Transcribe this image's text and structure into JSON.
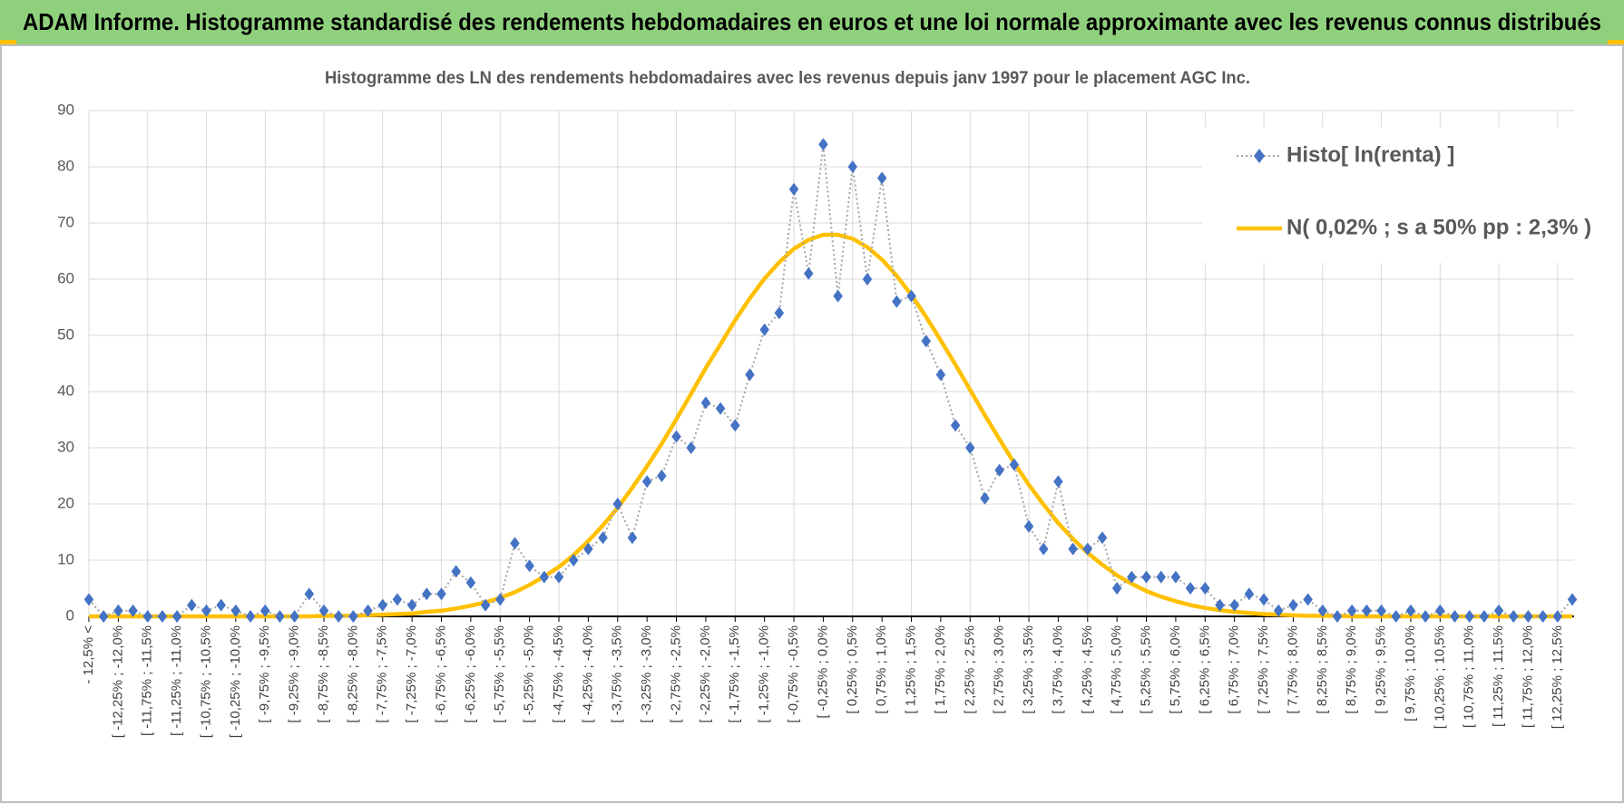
{
  "header": {
    "title": "ADAM Informe. Histogramme standardisé des rendements hebdomadaires en euros et une loi normale approximante avec les revenus connus distribués"
  },
  "chart_data": {
    "type": "line",
    "title": "Histogramme  des LN des rendements hebdomadaires avec les revenus depuis janv 1997 pour le placement AGC Inc.",
    "categories": [
      "- 12,5% <",
      null,
      "[ -12,25% ; -12,0%",
      null,
      "[ -11,75% ; -11,5%",
      null,
      "[ -11,25% ; -11,0%",
      null,
      "[ -10,75% ; -10,5%",
      null,
      "[ -10,25% ; -10,0%",
      null,
      "[ -9,75% ; -9,5%",
      null,
      "[ -9,25% ; -9,0%",
      null,
      "[ -8,75% ; -8,5%",
      null,
      "[ -8,25% ; -8,0%",
      null,
      "[ -7,75% ; -7,5%",
      null,
      "[ -7,25% ; -7,0%",
      null,
      "[ -6,75% ; -6,5%",
      null,
      "[ -6,25% ; -6,0%",
      null,
      "[ -5,75% ; -5,5%",
      null,
      "[ -5,25% ; -5,0%",
      null,
      "[ -4,75% ; -4,5%",
      null,
      "[ -4,25% ; -4,0%",
      null,
      "[ -3,75% ; -3,5%",
      null,
      "[ -3,25% ; -3,0%",
      null,
      "[ -2,75% ; -2,5%",
      null,
      "[ -2,25% ; -2,0%",
      null,
      "[ -1,75% ; -1,5%",
      null,
      "[ -1,25% ; -1,0%",
      null,
      "[ -0,75% ; -0,5%",
      null,
      "[ -0,25% ; 0,0%",
      null,
      "[ 0,25% ; 0,5%",
      null,
      "[ 0,75% ; 1,0%",
      null,
      "[ 1,25% ; 1,5%",
      null,
      "[ 1,75% ; 2,0%",
      null,
      "[ 2,25% ; 2,5%",
      null,
      "[ 2,75% ; 3,0%",
      null,
      "[ 3,25% ; 3,5%",
      null,
      "[ 3,75% ; 4,0%",
      null,
      "[ 4,25% ; 4,5%",
      null,
      "[ 4,75% ; 5,0%",
      null,
      "[ 5,25% ; 5,5%",
      null,
      "[ 5,75% ; 6,0%",
      null,
      "[ 6,25% ; 6,5%",
      null,
      "[ 6,75% ; 7,0%",
      null,
      "[ 7,25% ; 7,5%",
      null,
      "[ 7,75% ; 8,0%",
      null,
      "[ 8,25% ; 8,5%",
      null,
      "[ 8,75% ; 9,0%",
      null,
      "[ 9,25% ; 9,5%",
      null,
      "[ 9,75% ; 10,0%",
      null,
      "[ 10,25% ; 10,5%",
      null,
      "[ 10,75% ; 11,0%",
      null,
      "[ 11,25% ; 11,5%",
      null,
      "[ 11,75% ; 12,0%",
      null,
      "[ 12,25% ; 12,5%",
      null
    ],
    "series": [
      {
        "name": "Histo[ ln(renta) ]",
        "color": "#4472c4",
        "line_color": "#a5a5a5",
        "values": [
          3,
          0,
          1,
          1,
          0,
          0,
          0,
          2,
          1,
          2,
          1,
          0,
          1,
          0,
          0,
          4,
          1,
          0,
          0,
          1,
          2,
          3,
          2,
          4,
          4,
          8,
          6,
          2,
          3,
          13,
          9,
          7,
          7,
          10,
          12,
          14,
          20,
          14,
          24,
          25,
          32,
          30,
          38,
          37,
          34,
          43,
          51,
          54,
          76,
          61,
          84,
          57,
          80,
          60,
          78,
          56,
          57,
          49,
          43,
          34,
          30,
          21,
          26,
          27,
          16,
          12,
          24,
          12,
          12,
          14,
          5,
          7,
          7,
          7,
          7,
          5,
          5,
          2,
          2,
          4,
          3,
          1,
          2,
          3,
          1,
          0,
          1,
          1,
          1,
          0,
          1,
          0,
          1,
          0,
          0,
          0,
          1,
          0,
          0,
          0,
          0,
          3
        ]
      },
      {
        "name": "N( 0,02% ; s a 50% pp : 2,3% )",
        "color": "#ffc000",
        "values": [
          0,
          0,
          0,
          0,
          0,
          0,
          0,
          0,
          0,
          0,
          0,
          0,
          0,
          0,
          0,
          0,
          0.1,
          0.1,
          0.1,
          0.2,
          0.3,
          0.4,
          0.5,
          0.8,
          1.0,
          1.4,
          1.9,
          2.5,
          3.3,
          4.3,
          5.6,
          7.1,
          8.8,
          10.9,
          13.4,
          16.2,
          19.3,
          22.9,
          26.7,
          30.7,
          35.1,
          39.6,
          44.2,
          48.4,
          52.7,
          56.6,
          60.1,
          63.0,
          65.4,
          67.0,
          67.9,
          67.9,
          67.2,
          65.7,
          63.5,
          60.6,
          57.2,
          53.3,
          49.1,
          44.8,
          40.3,
          35.8,
          31.5,
          27.3,
          23.4,
          19.9,
          16.6,
          13.8,
          11.3,
          9.2,
          7.3,
          5.8,
          4.5,
          3.5,
          2.7,
          2.0,
          1.5,
          1.1,
          0.8,
          0.6,
          0.4,
          0.3,
          0.2,
          0.1,
          0.1,
          0.1,
          0,
          0,
          0,
          0,
          0,
          0,
          0,
          0,
          0,
          0,
          0,
          0,
          0,
          0,
          0,
          0
        ]
      }
    ],
    "ylim": [
      0,
      90
    ],
    "yticks": [
      0,
      10,
      20,
      30,
      40,
      50,
      60,
      70,
      80,
      90
    ],
    "grid": true,
    "legend": "upper right"
  }
}
